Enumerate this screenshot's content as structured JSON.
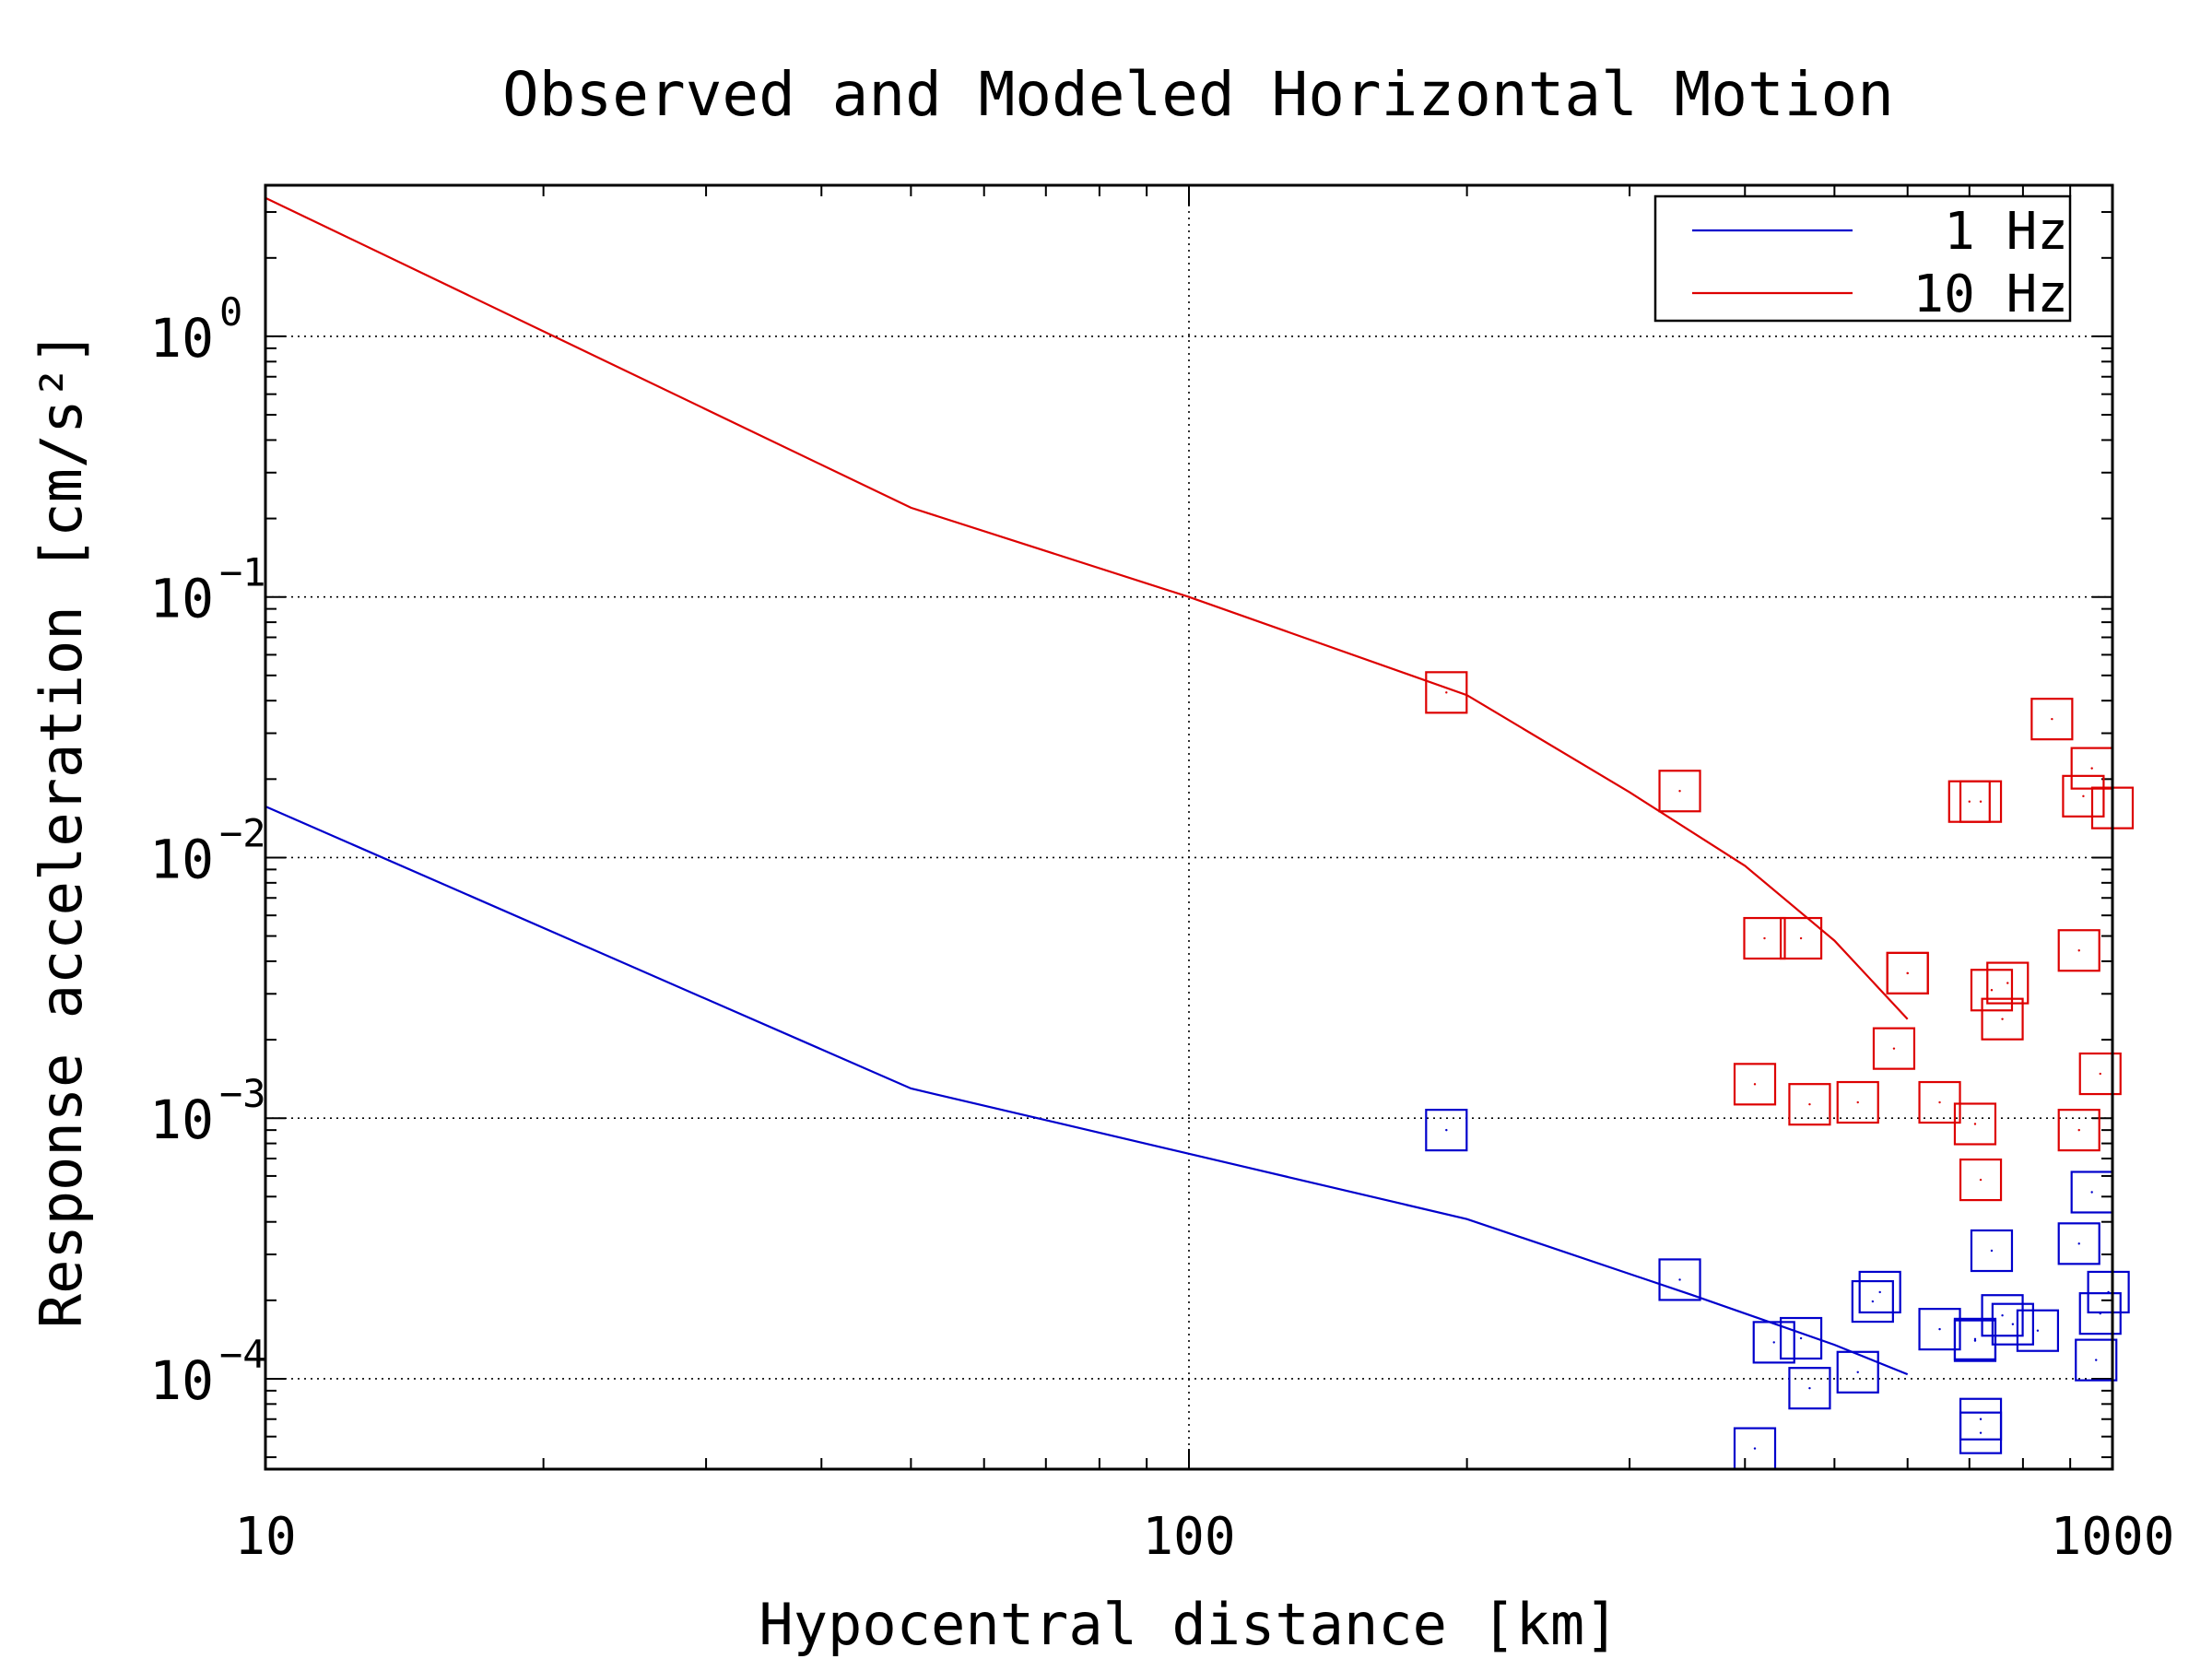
{
  "chart_data": {
    "type": "scatter",
    "title": "Observed and Modeled Horizontal Motion",
    "xlabel": "Hypocentral distance [km]",
    "ylabel": "Response acceleration [cm/s²]",
    "x_scale": "log",
    "y_scale": "log",
    "xlim": [
      10,
      1000
    ],
    "ylim": [
      4.5e-05,
      3.8
    ],
    "x_ticks": [
      {
        "value": 10,
        "label": "10"
      },
      {
        "value": 100,
        "label": "100"
      },
      {
        "value": 1000,
        "label": "1000"
      }
    ],
    "y_ticks": [
      {
        "value": 1,
        "base": "10",
        "exp": "0"
      },
      {
        "value": 0.1,
        "base": "10",
        "exp": "−1"
      },
      {
        "value": 0.01,
        "base": "10",
        "exp": "−2"
      },
      {
        "value": 0.001,
        "base": "10",
        "exp": "−3"
      },
      {
        "value": 0.0001,
        "base": "10",
        "exp": "−4"
      }
    ],
    "grid": "dotted at major ticks",
    "legend_position": "top-right",
    "series": [
      {
        "name": "1 Hz",
        "kind": "line",
        "color": "#0000cc",
        "x": [
          10,
          50,
          100,
          200,
          350,
          500,
          600
        ],
        "y": [
          0.0157,
          0.0013,
          0.00073,
          0.00041,
          0.00021,
          0.000135,
          0.000104
        ]
      },
      {
        "name": "10 Hz",
        "kind": "line",
        "color": "#dd0000",
        "x": [
          10,
          50,
          100,
          200,
          300,
          400,
          500,
          600
        ],
        "y": [
          3.4,
          0.22,
          0.1,
          0.042,
          0.0178,
          0.0093,
          0.0048,
          0.0024
        ]
      },
      {
        "kind": "markers",
        "marker": "square",
        "color": "#dd0000",
        "x": [
          190,
          340,
          460,
          600,
          860,
          720,
          700,
          950,
          1000,
          930,
          420,
          600,
          740,
          770,
          760,
          920,
          410,
          470,
          580,
          530,
          650,
          710,
          720,
          920,
          970
        ],
        "y": [
          0.043,
          0.018,
          0.0049,
          0.0036,
          0.034,
          0.0164,
          0.0164,
          0.022,
          0.0155,
          0.0172,
          0.0049,
          0.0036,
          0.0031,
          0.0033,
          0.0024,
          0.0044,
          0.00135,
          0.00113,
          0.00185,
          0.00115,
          0.00115,
          0.00095,
          0.00058,
          0.0009,
          0.00148
        ]
      },
      {
        "kind": "markers",
        "marker": "square",
        "color": "#0000cc",
        "x": [
          190,
          340,
          430,
          460,
          470,
          530,
          550,
          560,
          650,
          710,
          710,
          720,
          740,
          760,
          780,
          830,
          920,
          950,
          960,
          970,
          990,
          410,
          720
        ],
        "y": [
          0.0009,
          0.00024,
          0.000138,
          0.000143,
          9.2e-05,
          0.000106,
          0.000198,
          0.000215,
          0.000155,
          0.000142,
          0.00014,
          6.2e-05,
          0.00031,
          0.000175,
          0.000162,
          0.000153,
          0.00033,
          0.00052,
          0.000118,
          0.000178,
          0.000215,
          5.4e-05,
          7e-05
        ]
      }
    ]
  }
}
